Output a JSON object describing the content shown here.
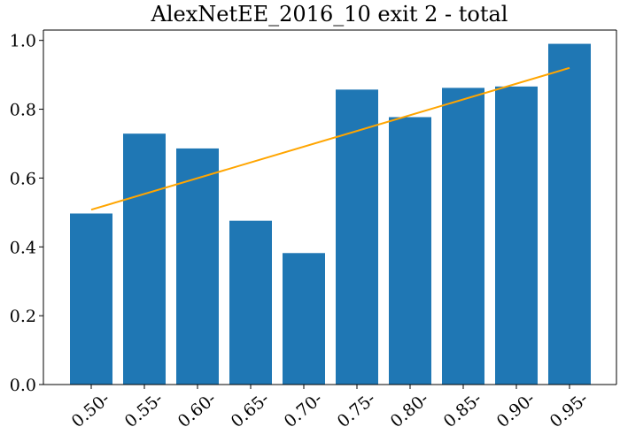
{
  "chart_data": {
    "type": "bar",
    "title": "AlexNetEE_2016_10 exit 2 - total",
    "xlabel": "",
    "ylabel": "",
    "categories": [
      "0.50-",
      "0.55-",
      "0.60-",
      "0.65-",
      "0.70-",
      "0.75-",
      "0.80-",
      "0.85-",
      "0.90-",
      "0.95-"
    ],
    "values": [
      0.497,
      0.729,
      0.686,
      0.476,
      0.382,
      0.857,
      0.777,
      0.862,
      0.866,
      0.99
    ],
    "trendline": {
      "start": 0.508,
      "end": 0.92,
      "color": "#ffa500"
    },
    "ylim": [
      0.0,
      1.03
    ],
    "yticks": [
      0.0,
      0.2,
      0.4,
      0.6,
      0.8,
      1.0
    ],
    "ytick_labels": [
      "0.0",
      "0.2",
      "0.4",
      "0.6",
      "0.8",
      "1.0"
    ],
    "bar_color": "#1f77b4",
    "grid": false,
    "legend": "none"
  }
}
